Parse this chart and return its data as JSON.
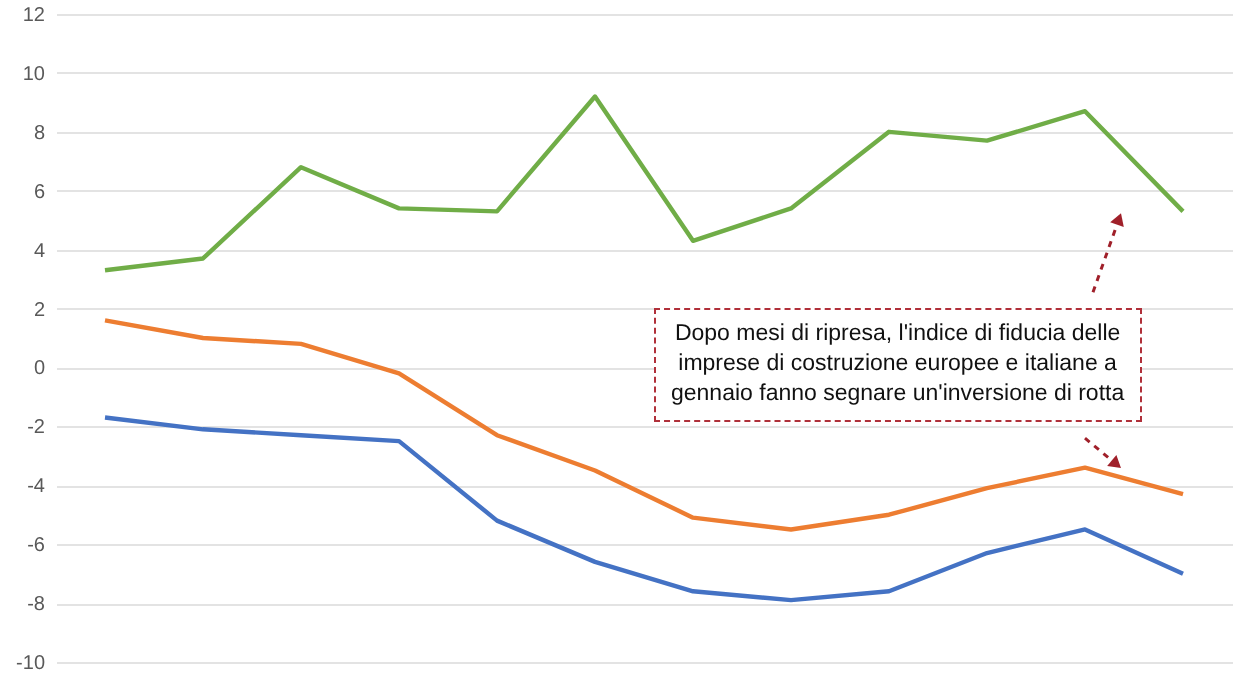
{
  "chart_data": {
    "type": "line",
    "categories": [
      null,
      null,
      null,
      null,
      null,
      null,
      null,
      null,
      null,
      null,
      null,
      null
    ],
    "series": [
      {
        "color": "#70ad47",
        "values": [
          3.3,
          3.7,
          6.8,
          5.4,
          5.3,
          9.2,
          4.3,
          5.4,
          8.0,
          7.7,
          8.7,
          5.3
        ]
      },
      {
        "color": "#ed7d31",
        "values": [
          1.6,
          1.0,
          0.8,
          -0.2,
          -2.3,
          -3.5,
          -5.1,
          -5.5,
          -5.0,
          -4.1,
          -3.4,
          -4.3
        ]
      },
      {
        "color": "#4472c4",
        "values": [
          -1.7,
          -2.1,
          -2.3,
          -2.5,
          -5.2,
          -6.6,
          -7.6,
          -7.9,
          -7.6,
          -6.3,
          -5.5,
          -7.0
        ]
      }
    ],
    "ylim": [
      -10,
      12
    ],
    "yticks": [
      -10,
      -8,
      -6,
      -4,
      -2,
      0,
      2,
      4,
      6,
      8,
      10,
      12
    ],
    "grid": "y",
    "tick_labels": "y",
    "marker": "none",
    "line_style": "solid",
    "annotations": [
      "Dopo mesi di ripresa, l'indice di fiducia delle imprese di costruzione europee e italiane a gennaio fanno segnare un'inversione di rotta"
    ]
  }
}
